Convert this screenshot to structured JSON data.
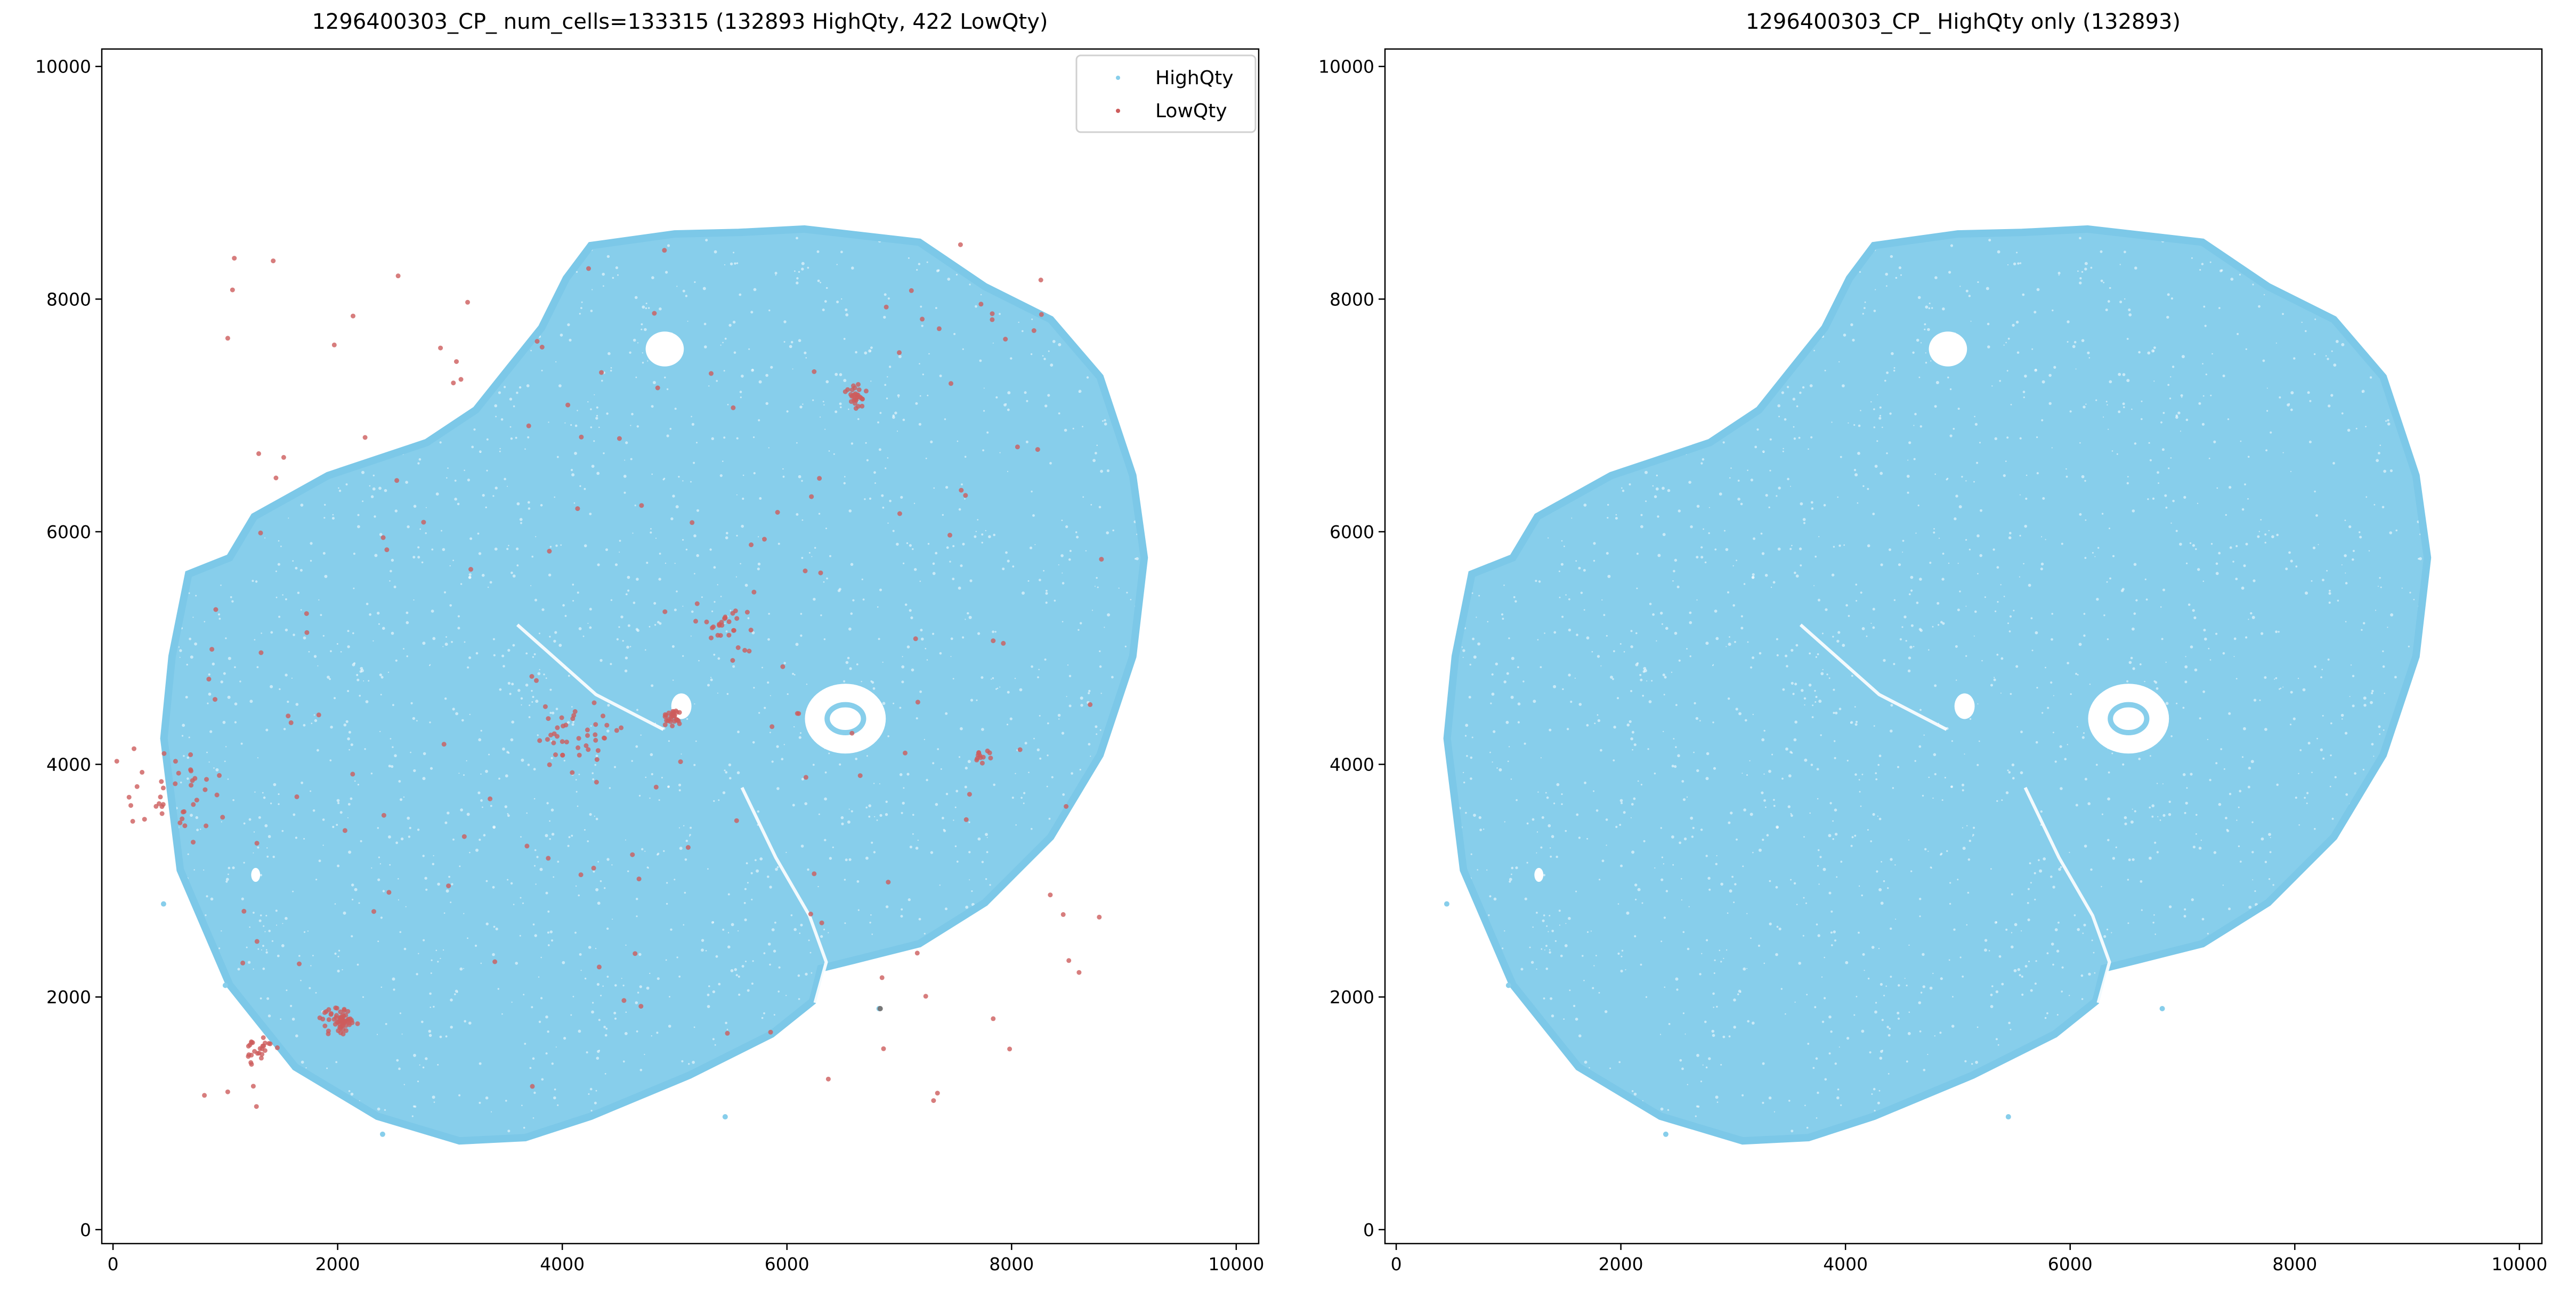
{
  "colors": {
    "high": "#87CEEB",
    "low": "#CD5C5C",
    "grey": "#777777",
    "axis": "#000000"
  },
  "chart_data": [
    {
      "type": "scatter",
      "title": "1296400303_CP_ num_cells=133315 (132893 HighQty, 422 LowQty)",
      "xlim": [
        -100,
        10200
      ],
      "ylim": [
        -120,
        10150
      ],
      "xticks": [
        0,
        2000,
        4000,
        6000,
        8000,
        10000
      ],
      "yticks": [
        0,
        2000,
        4000,
        6000,
        8000,
        10000
      ],
      "xtick_labels": [
        "0",
        "2000",
        "4000",
        "6000",
        "8000",
        "10000"
      ],
      "ytick_labels": [
        "0",
        "2000",
        "4000",
        "6000",
        "8000",
        "10000"
      ],
      "legend": {
        "placement": "top-right",
        "entries": [
          "HighQty",
          "LowQty"
        ]
      },
      "series": [
        {
          "name": "HighQty",
          "count": 132893
        },
        {
          "name": "LowQty",
          "count": 422,
          "clusters": [
            {
              "x": 2020,
              "y": 1800,
              "spread": 90,
              "n": 60
            },
            {
              "x": 1300,
              "y": 1550,
              "spread": 90,
              "n": 25
            },
            {
              "x": 4980,
              "y": 4410,
              "spread": 60,
              "n": 30
            },
            {
              "x": 5420,
              "y": 5220,
              "spread": 180,
              "n": 25
            },
            {
              "x": 6620,
              "y": 7160,
              "spread": 60,
              "n": 30
            },
            {
              "x": 7740,
              "y": 4070,
              "spread": 40,
              "n": 12
            },
            {
              "x": 4100,
              "y": 4250,
              "spread": 250,
              "n": 40
            },
            {
              "x": 600,
              "y": 3800,
              "spread": 350,
              "n": 40
            },
            {
              "x": 5000,
              "y": 4500,
              "spread": 3500,
              "n": 160
            }
          ]
        }
      ]
    },
    {
      "type": "scatter",
      "title": "1296400303_CP_ HighQty only (132893)",
      "xlim": [
        -100,
        10200
      ],
      "ylim": [
        -120,
        10150
      ],
      "xticks": [
        0,
        2000,
        4000,
        6000,
        8000,
        10000
      ],
      "yticks": [
        0,
        2000,
        4000,
        6000,
        8000,
        10000
      ],
      "xtick_labels": [
        "0",
        "2000",
        "4000",
        "6000",
        "8000",
        "10000"
      ],
      "ytick_labels": [
        "0",
        "2000",
        "4000",
        "6000",
        "8000",
        "10000"
      ],
      "series": [
        {
          "name": "HighQty",
          "count": 132893
        }
      ]
    }
  ],
  "tissue": {
    "outline": [
      [
        4254,
        8460
      ],
      [
        5000,
        8560
      ],
      [
        5570,
        8573
      ],
      [
        6155,
        8602
      ],
      [
        7178,
        8489
      ],
      [
        7763,
        8107
      ],
      [
        8348,
        7825
      ],
      [
        8787,
        7330
      ],
      [
        9079,
        6483
      ],
      [
        9181,
        5777
      ],
      [
        9079,
        4929
      ],
      [
        8787,
        4082
      ],
      [
        8348,
        3376
      ],
      [
        7763,
        2811
      ],
      [
        7178,
        2458
      ],
      [
        6594,
        2316
      ],
      [
        6301,
        2246
      ],
      [
        6228,
        1963
      ],
      [
        5863,
        1681
      ],
      [
        5132,
        1328
      ],
      [
        4254,
        975
      ],
      [
        3670,
        791
      ],
      [
        3085,
        763
      ],
      [
        2354,
        975
      ],
      [
        1623,
        1398
      ],
      [
        1038,
        2105
      ],
      [
        599,
        3093
      ],
      [
        453,
        4223
      ],
      [
        526,
        4929
      ],
      [
        673,
        5636
      ],
      [
        1038,
        5777
      ],
      [
        1257,
        6130
      ],
      [
        1915,
        6483
      ],
      [
        2792,
        6766
      ],
      [
        3231,
        7048
      ],
      [
        3523,
        7401
      ],
      [
        3816,
        7754
      ],
      [
        4035,
        8178
      ]
    ],
    "holes": [
      {
        "x": 4912,
        "y": 7571,
        "rx": 170,
        "ry": 150
      },
      {
        "x": 6520,
        "y": 4393,
        "rx": 360,
        "ry": 300
      },
      {
        "x": 5060,
        "y": 4500,
        "rx": 90,
        "ry": 110
      },
      {
        "x": 1270,
        "y": 3050,
        "rx": 40,
        "ry": 60
      }
    ],
    "folds": [
      [
        [
          5600,
          3800
        ],
        [
          5900,
          3200
        ],
        [
          6200,
          2700
        ],
        [
          6350,
          2300
        ],
        [
          6250,
          1950
        ]
      ],
      [
        [
          3600,
          5200
        ],
        [
          4300,
          4600
        ],
        [
          4900,
          4300
        ]
      ]
    ]
  }
}
